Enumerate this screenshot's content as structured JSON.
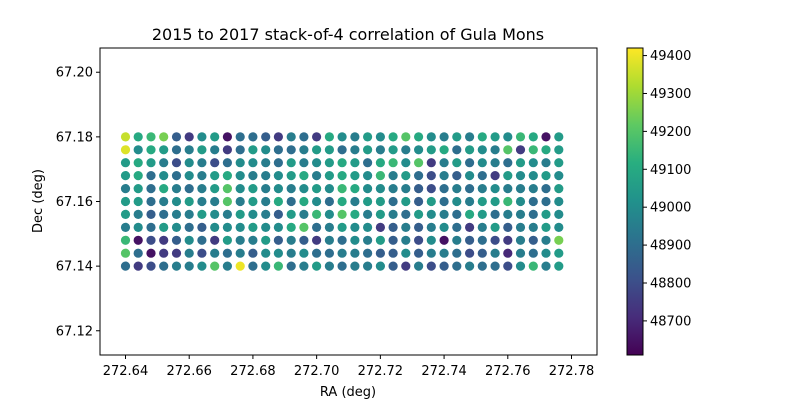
{
  "chart_data": {
    "type": "scatter",
    "title": "2015 to 2017 stack-of-4 correlation of Gula Mons",
    "xlabel": "RA (deg)",
    "ylabel": "Dec (deg)",
    "xlim": [
      272.632,
      272.788
    ],
    "ylim": [
      67.1125,
      67.2075
    ],
    "xticks": [
      "272.64",
      "272.66",
      "272.68",
      "272.70",
      "272.72",
      "272.74",
      "272.76",
      "272.78"
    ],
    "yticks": [
      "67.12",
      "67.14",
      "67.16",
      "67.18",
      "67.20"
    ],
    "colorbar": {
      "colormap": "viridis",
      "range": [
        48610,
        49420
      ],
      "ticks": [
        "48700",
        "48800",
        "48900",
        "49000",
        "49100",
        "49200",
        "49300",
        "49400"
      ]
    },
    "grid": {
      "ra_start": 272.64,
      "ra_step": 0.004,
      "dec_rows_top_to_bottom": [
        67.18,
        67.176,
        67.172,
        67.168,
        67.164,
        67.16,
        67.156,
        67.152,
        67.148,
        67.144,
        67.14
      ],
      "values_by_row": [
        [
          49350,
          49100,
          49150,
          49250,
          48850,
          48750,
          49000,
          49050,
          48650,
          48900,
          48900,
          48850,
          48750,
          48950,
          48900,
          48750,
          49100,
          49000,
          48950,
          49050,
          49000,
          49100,
          49200,
          49100,
          49000,
          48950,
          49050,
          48950,
          49100,
          49050,
          49000,
          49150,
          49100,
          48650,
          49050
        ],
        [
          49380,
          49000,
          49100,
          49050,
          48900,
          48950,
          49050,
          48950,
          48750,
          48900,
          49050,
          49000,
          48900,
          48900,
          48950,
          49050,
          49050,
          48900,
          48950,
          49050,
          48950,
          49050,
          48950,
          49000,
          49050,
          49100,
          48900,
          49050,
          49000,
          48950,
          49200,
          48750,
          49150,
          49100,
          49050
        ],
        [
          49050,
          49100,
          49050,
          48950,
          48800,
          49000,
          48950,
          48800,
          48900,
          49000,
          49000,
          48950,
          48900,
          49050,
          48950,
          49000,
          49050,
          49100,
          49050,
          48900,
          49100,
          49150,
          49000,
          49200,
          48750,
          48950,
          49050,
          48900,
          49000,
          48950,
          48900,
          49050,
          49000,
          48950,
          49050
        ],
        [
          49050,
          49100,
          48900,
          49000,
          48900,
          49000,
          48950,
          49050,
          49100,
          49000,
          48950,
          48950,
          49000,
          49050,
          49100,
          48950,
          49050,
          49100,
          49050,
          49000,
          49150,
          48950,
          49050,
          48900,
          48800,
          48950,
          48850,
          49000,
          48900,
          48750,
          49050,
          49000,
          49000,
          49050,
          49000
        ],
        [
          48950,
          49050,
          48900,
          49100,
          48950,
          48900,
          48950,
          49050,
          49200,
          49000,
          49050,
          48950,
          49000,
          48950,
          49000,
          49050,
          49000,
          49150,
          49100,
          49000,
          49000,
          48950,
          48950,
          48850,
          48800,
          48900,
          48950,
          48900,
          48950,
          49000,
          48950,
          48950,
          48950,
          48900,
          49050
        ],
        [
          49050,
          49050,
          48900,
          48950,
          49000,
          49050,
          48950,
          48950,
          49200,
          48950,
          49050,
          48950,
          49100,
          48900,
          49100,
          49000,
          48900,
          49100,
          48950,
          49050,
          49050,
          48900,
          49050,
          48850,
          49050,
          48900,
          49000,
          48950,
          49050,
          49050,
          49150,
          49000,
          48900,
          48900,
          49000
        ],
        [
          49050,
          48950,
          48850,
          48900,
          48950,
          48950,
          49050,
          49000,
          48950,
          49050,
          49000,
          48950,
          48850,
          49050,
          48950,
          49150,
          49000,
          49200,
          49100,
          48950,
          49050,
          48950,
          48900,
          49050,
          49000,
          48950,
          48900,
          49100,
          49050,
          48900,
          48950,
          48950,
          48900,
          49050,
          49000
        ],
        [
          48950,
          49000,
          48900,
          49050,
          49000,
          48900,
          48850,
          49000,
          49000,
          49000,
          49050,
          49000,
          49000,
          49100,
          49200,
          48900,
          48950,
          49050,
          49000,
          49000,
          48750,
          48850,
          48950,
          48850,
          48950,
          49000,
          48900,
          48750,
          48950,
          49050,
          48850,
          48950,
          48950,
          49050,
          49000
        ],
        [
          49150,
          48650,
          48800,
          48750,
          48850,
          49000,
          48900,
          48750,
          49050,
          48950,
          48950,
          49050,
          48850,
          48950,
          48850,
          48750,
          48950,
          48900,
          49000,
          48950,
          49050,
          48850,
          48950,
          48800,
          49000,
          48650,
          48950,
          48850,
          48900,
          48800,
          48750,
          48950,
          48850,
          48950,
          49250
        ],
        [
          49200,
          48900,
          48650,
          48750,
          48750,
          48950,
          48800,
          48950,
          48900,
          48950,
          48850,
          49000,
          49000,
          48950,
          49000,
          48900,
          48900,
          48950,
          48950,
          48900,
          48850,
          48850,
          49000,
          48850,
          48950,
          48950,
          48900,
          48800,
          48850,
          48950,
          48700,
          48950,
          48900,
          49000,
          49050
        ],
        [
          48900,
          48750,
          48800,
          48900,
          48950,
          48950,
          49000,
          49200,
          48950,
          49400,
          48900,
          49000,
          49150,
          48900,
          48950,
          49050,
          48950,
          48900,
          48950,
          48950,
          49000,
          48850,
          48750,
          48950,
          48800,
          48850,
          48900,
          48950,
          48900,
          48900,
          48800,
          49000,
          49150,
          48950,
          49050
        ]
      ]
    }
  }
}
